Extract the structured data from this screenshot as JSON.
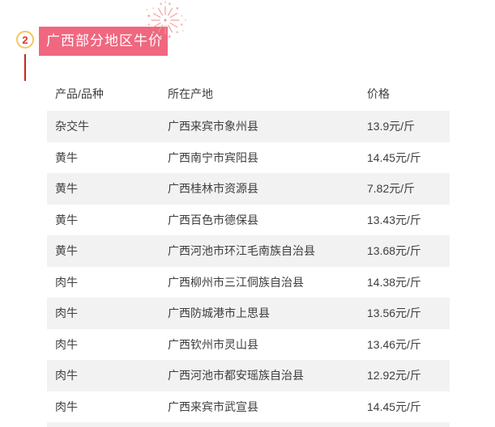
{
  "header": {
    "number": "2",
    "title": "广西部分地区牛价"
  },
  "table": {
    "columns": [
      "产品/品种",
      "所在产地",
      "价格"
    ],
    "rows": [
      [
        "杂交牛",
        "广西来宾市象州县",
        "13.9元/斤"
      ],
      [
        "黄牛",
        "广西南宁市宾阳县",
        "14.45元/斤"
      ],
      [
        "黄牛",
        "广西桂林市资源县",
        "7.82元/斤"
      ],
      [
        "黄牛",
        "广西百色市德保县",
        "13.43元/斤"
      ],
      [
        "黄牛",
        "广西河池市环江毛南族自治县",
        "13.68元/斤"
      ],
      [
        "肉牛",
        "广西柳州市三江侗族自治县",
        "14.38元/斤"
      ],
      [
        "肉牛",
        "广西防城港市上思县",
        "13.56元/斤"
      ],
      [
        "肉牛",
        "广西钦州市灵山县",
        "13.46元/斤"
      ],
      [
        "肉牛",
        "广西河池市都安瑶族自治县",
        "12.92元/斤"
      ],
      [
        "肉牛",
        "广西来宾市武宣县",
        "14.45元/斤"
      ]
    ]
  },
  "colors": {
    "banner_bg": "#f0677f",
    "banner_text": "#ffffff",
    "badge_border": "#f6c65f",
    "badge_number": "#e2342e",
    "connector_line": "#c9241f",
    "row_stripe": "#f2f2f2",
    "text": "#3e3e3e",
    "firework": "#f2998f"
  }
}
